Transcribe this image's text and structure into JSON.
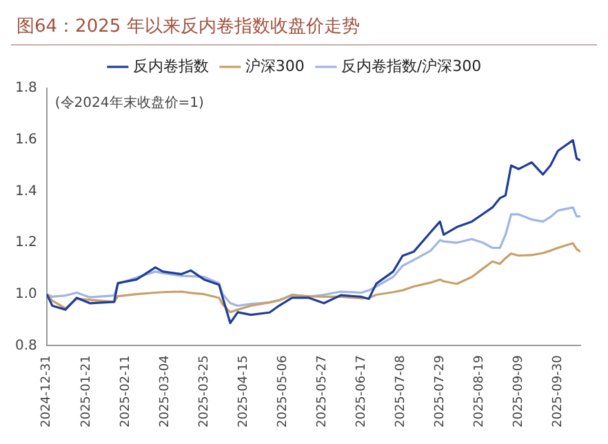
{
  "chart_data": {
    "type": "line",
    "title": "图64：2025 年以来反内卷指数收盘价走势",
    "annotations": [
      "(令2024年末收盘价=1)"
    ],
    "x": [
      "2024-12-31",
      "2025-01-03",
      "2025-01-10",
      "2025-01-16",
      "2025-01-23",
      "2025-02-05",
      "2025-02-07",
      "2025-02-17",
      "2025-02-27",
      "2025-03-03",
      "2025-03-13",
      "2025-03-18",
      "2025-03-25",
      "2025-04-02",
      "2025-04-04",
      "2025-04-08",
      "2025-04-12",
      "2025-04-19",
      "2025-04-29",
      "2025-05-04",
      "2025-05-11",
      "2025-05-20",
      "2025-05-28",
      "2025-06-06",
      "2025-06-17",
      "2025-06-21",
      "2025-06-25",
      "2025-07-04",
      "2025-07-09",
      "2025-07-15",
      "2025-07-24",
      "2025-07-29",
      "2025-07-31",
      "2025-08-07",
      "2025-08-15",
      "2025-08-21",
      "2025-08-26",
      "2025-08-30",
      "2025-09-02",
      "2025-09-05",
      "2025-09-09",
      "2025-09-16",
      "2025-09-22",
      "2025-09-26",
      "2025-09-30",
      "2025-10-08",
      "2025-10-10",
      "2025-10-12"
    ],
    "series": [
      {
        "name": "反内卷指数",
        "color": "#1f3d99",
        "values": [
          1.0,
          0.955,
          0.94,
          0.986,
          0.965,
          0.97,
          1.043,
          1.057,
          1.104,
          1.088,
          1.078,
          1.092,
          1.057,
          1.037,
          0.986,
          0.888,
          0.93,
          0.92,
          0.929,
          0.955,
          0.986,
          0.986,
          0.965,
          0.996,
          0.99,
          0.982,
          1.041,
          1.088,
          1.149,
          1.165,
          1.241,
          1.282,
          1.231,
          1.261,
          1.282,
          1.312,
          1.337,
          1.373,
          1.384,
          1.5,
          1.486,
          1.512,
          1.465,
          1.5,
          1.557,
          1.598,
          1.527,
          1.52
        ]
      },
      {
        "name": "沪深300",
        "color": "#c8a06a",
        "values": [
          1.0,
          0.975,
          0.945,
          0.982,
          0.978,
          0.97,
          0.992,
          1.0,
          1.006,
          1.008,
          1.01,
          1.005,
          1.0,
          0.986,
          0.96,
          0.93,
          0.94,
          0.955,
          0.968,
          0.976,
          0.996,
          0.992,
          0.99,
          0.99,
          0.984,
          0.985,
          0.998,
          1.008,
          1.015,
          1.03,
          1.045,
          1.057,
          1.05,
          1.04,
          1.067,
          1.1,
          1.127,
          1.118,
          1.14,
          1.158,
          1.15,
          1.152,
          1.16,
          1.169,
          1.18,
          1.198,
          1.175,
          1.165
        ]
      },
      {
        "name": "反内卷指数/沪深300",
        "color": "#9fb5e6",
        "values": [
          1.0,
          0.99,
          0.995,
          1.006,
          0.988,
          0.995,
          1.04,
          1.065,
          1.088,
          1.082,
          1.071,
          1.07,
          1.067,
          1.043,
          1.0,
          0.965,
          0.955,
          0.962,
          0.968,
          0.976,
          0.998,
          0.99,
          0.998,
          1.01,
          1.006,
          1.015,
          1.03,
          1.067,
          1.11,
          1.133,
          1.169,
          1.21,
          1.205,
          1.2,
          1.214,
          1.2,
          1.18,
          1.18,
          1.231,
          1.31,
          1.31,
          1.29,
          1.282,
          1.3,
          1.325,
          1.337,
          1.302,
          1.302
        ]
      }
    ],
    "xlim": [
      "2024-12-31",
      "2025-10-12"
    ],
    "xticks": [
      "2024-12-31",
      "2025-01-21",
      "2025-02-11",
      "2025-03-04",
      "2025-03-25",
      "2025-04-15",
      "2025-05-06",
      "2025-05-27",
      "2025-06-17",
      "2025-07-08",
      "2025-07-29",
      "2025-08-19",
      "2025-09-09",
      "2025-09-30"
    ],
    "ylim": [
      0.8,
      1.8
    ],
    "yticks": [
      {
        "value": 0.8,
        "label": "0.8"
      },
      {
        "value": 1.0,
        "label": "1.0"
      },
      {
        "value": 1.2,
        "label": "1.2"
      },
      {
        "value": 1.4,
        "label": "1.4"
      },
      {
        "value": 1.6,
        "label": "1.6"
      },
      {
        "value": 1.8,
        "label": "1.8"
      }
    ],
    "grid": false,
    "legend": "top",
    "marker": "none",
    "line_style": "solid"
  }
}
